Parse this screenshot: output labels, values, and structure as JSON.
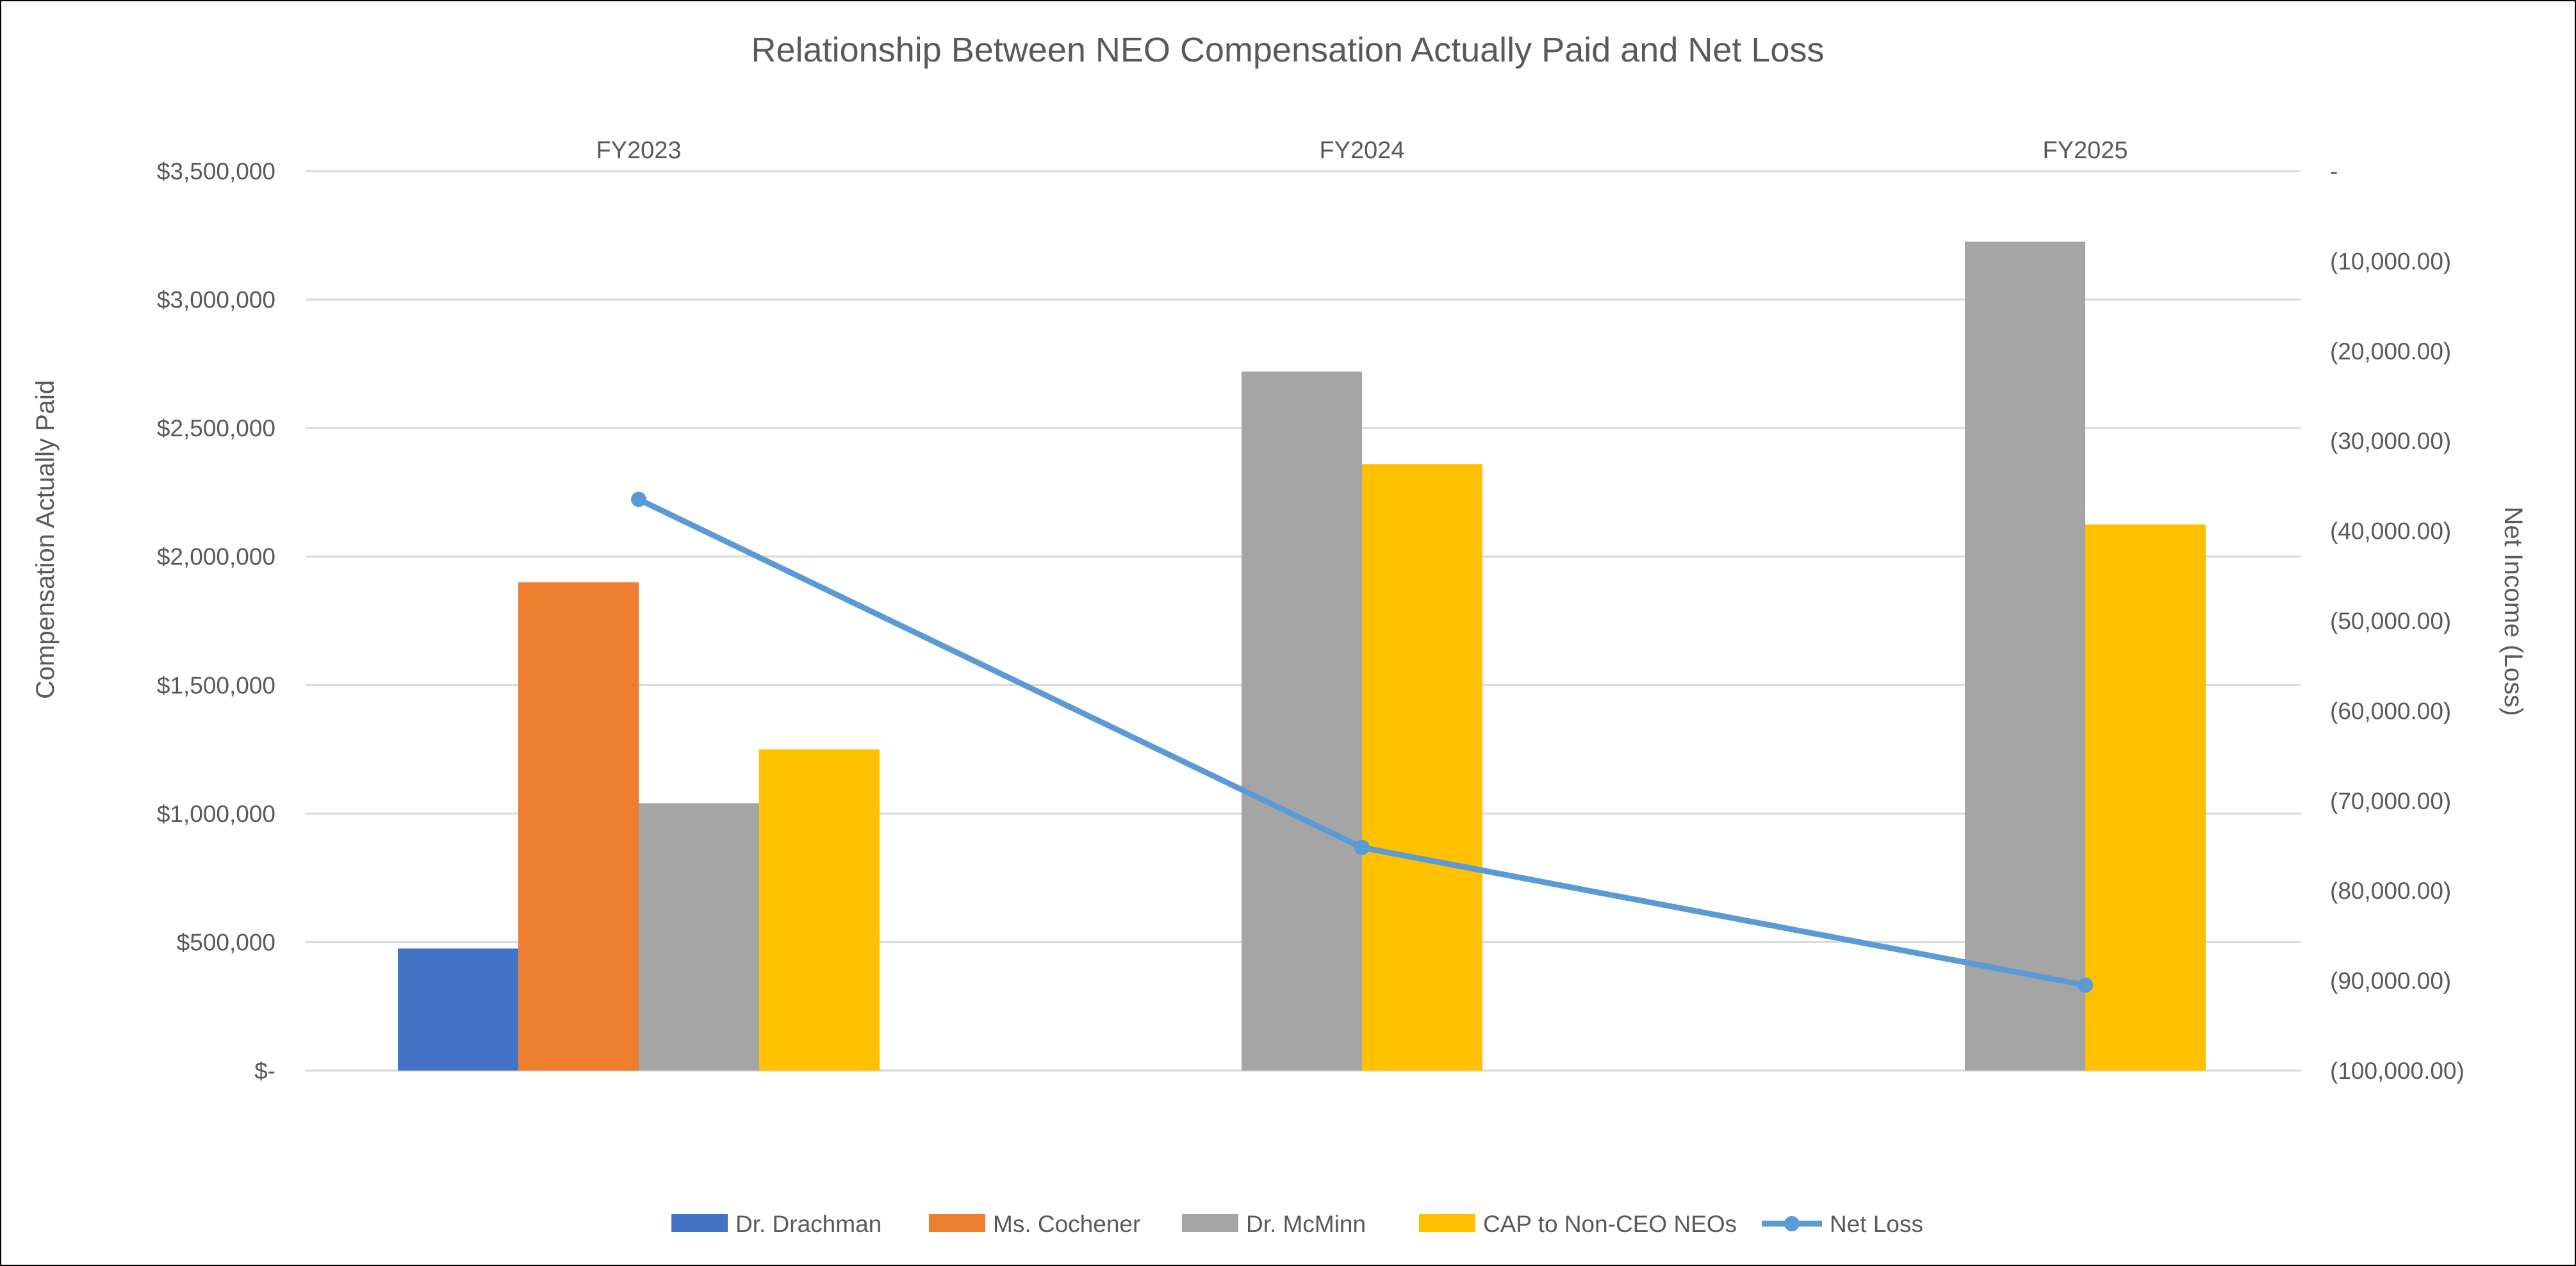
{
  "chart_data": {
    "type": "bar",
    "title": "Relationship Between NEO Compensation Actually Paid and Net Loss",
    "categories": [
      "FY2023",
      "FY2024",
      "FY2025"
    ],
    "y_left": {
      "label": "Compensation Actually Paid",
      "range": [
        0,
        3500000
      ],
      "ticks": [
        {
          "value": 0,
          "label": "$-"
        },
        {
          "value": 500000,
          "label": "$500,000"
        },
        {
          "value": 1000000,
          "label": "$1,000,000"
        },
        {
          "value": 1500000,
          "label": "$1,500,000"
        },
        {
          "value": 2000000,
          "label": "$2,000,000"
        },
        {
          "value": 2500000,
          "label": "$2,500,000"
        },
        {
          "value": 3000000,
          "label": "$3,000,000"
        },
        {
          "value": 3500000,
          "label": "$3,500,000"
        }
      ]
    },
    "y_right": {
      "label": "Net Income (Loss)",
      "range": [
        -100000,
        0
      ],
      "ticks": [
        {
          "value": 0,
          "label": "-"
        },
        {
          "value": -10000,
          "label": "(10,000.00)"
        },
        {
          "value": -20000,
          "label": "(20,000.00)"
        },
        {
          "value": -30000,
          "label": "(30,000.00)"
        },
        {
          "value": -40000,
          "label": "(40,000.00)"
        },
        {
          "value": -50000,
          "label": "(50,000.00)"
        },
        {
          "value": -60000,
          "label": "(60,000.00)"
        },
        {
          "value": -70000,
          "label": "(70,000.00)"
        },
        {
          "value": -80000,
          "label": "(80,000.00)"
        },
        {
          "value": -90000,
          "label": "(90,000.00)"
        },
        {
          "value": -100000,
          "label": "(100,000.00)"
        }
      ]
    },
    "series": [
      {
        "name": "Dr. Drachman",
        "kind": "bar",
        "color": "#4472C4",
        "values": [
          475000,
          null,
          null
        ]
      },
      {
        "name": "Ms. Cochener",
        "kind": "bar",
        "color": "#ED7D31",
        "values": [
          1900000,
          null,
          null
        ]
      },
      {
        "name": "Dr. McMinn",
        "kind": "bar",
        "color": "#A5A5A5",
        "values": [
          1040000,
          2720000,
          3225000
        ]
      },
      {
        "name": "CAP to Non-CEO NEOs",
        "kind": "bar",
        "color": "#FFC000",
        "values": [
          1250000,
          2360000,
          2125000
        ]
      },
      {
        "name": "Net Loss",
        "kind": "line",
        "axis": "right",
        "color": "#5B9BD5",
        "values": [
          -36500,
          -75200,
          -90500
        ]
      }
    ],
    "grid": true,
    "legend_position": "bottom"
  }
}
